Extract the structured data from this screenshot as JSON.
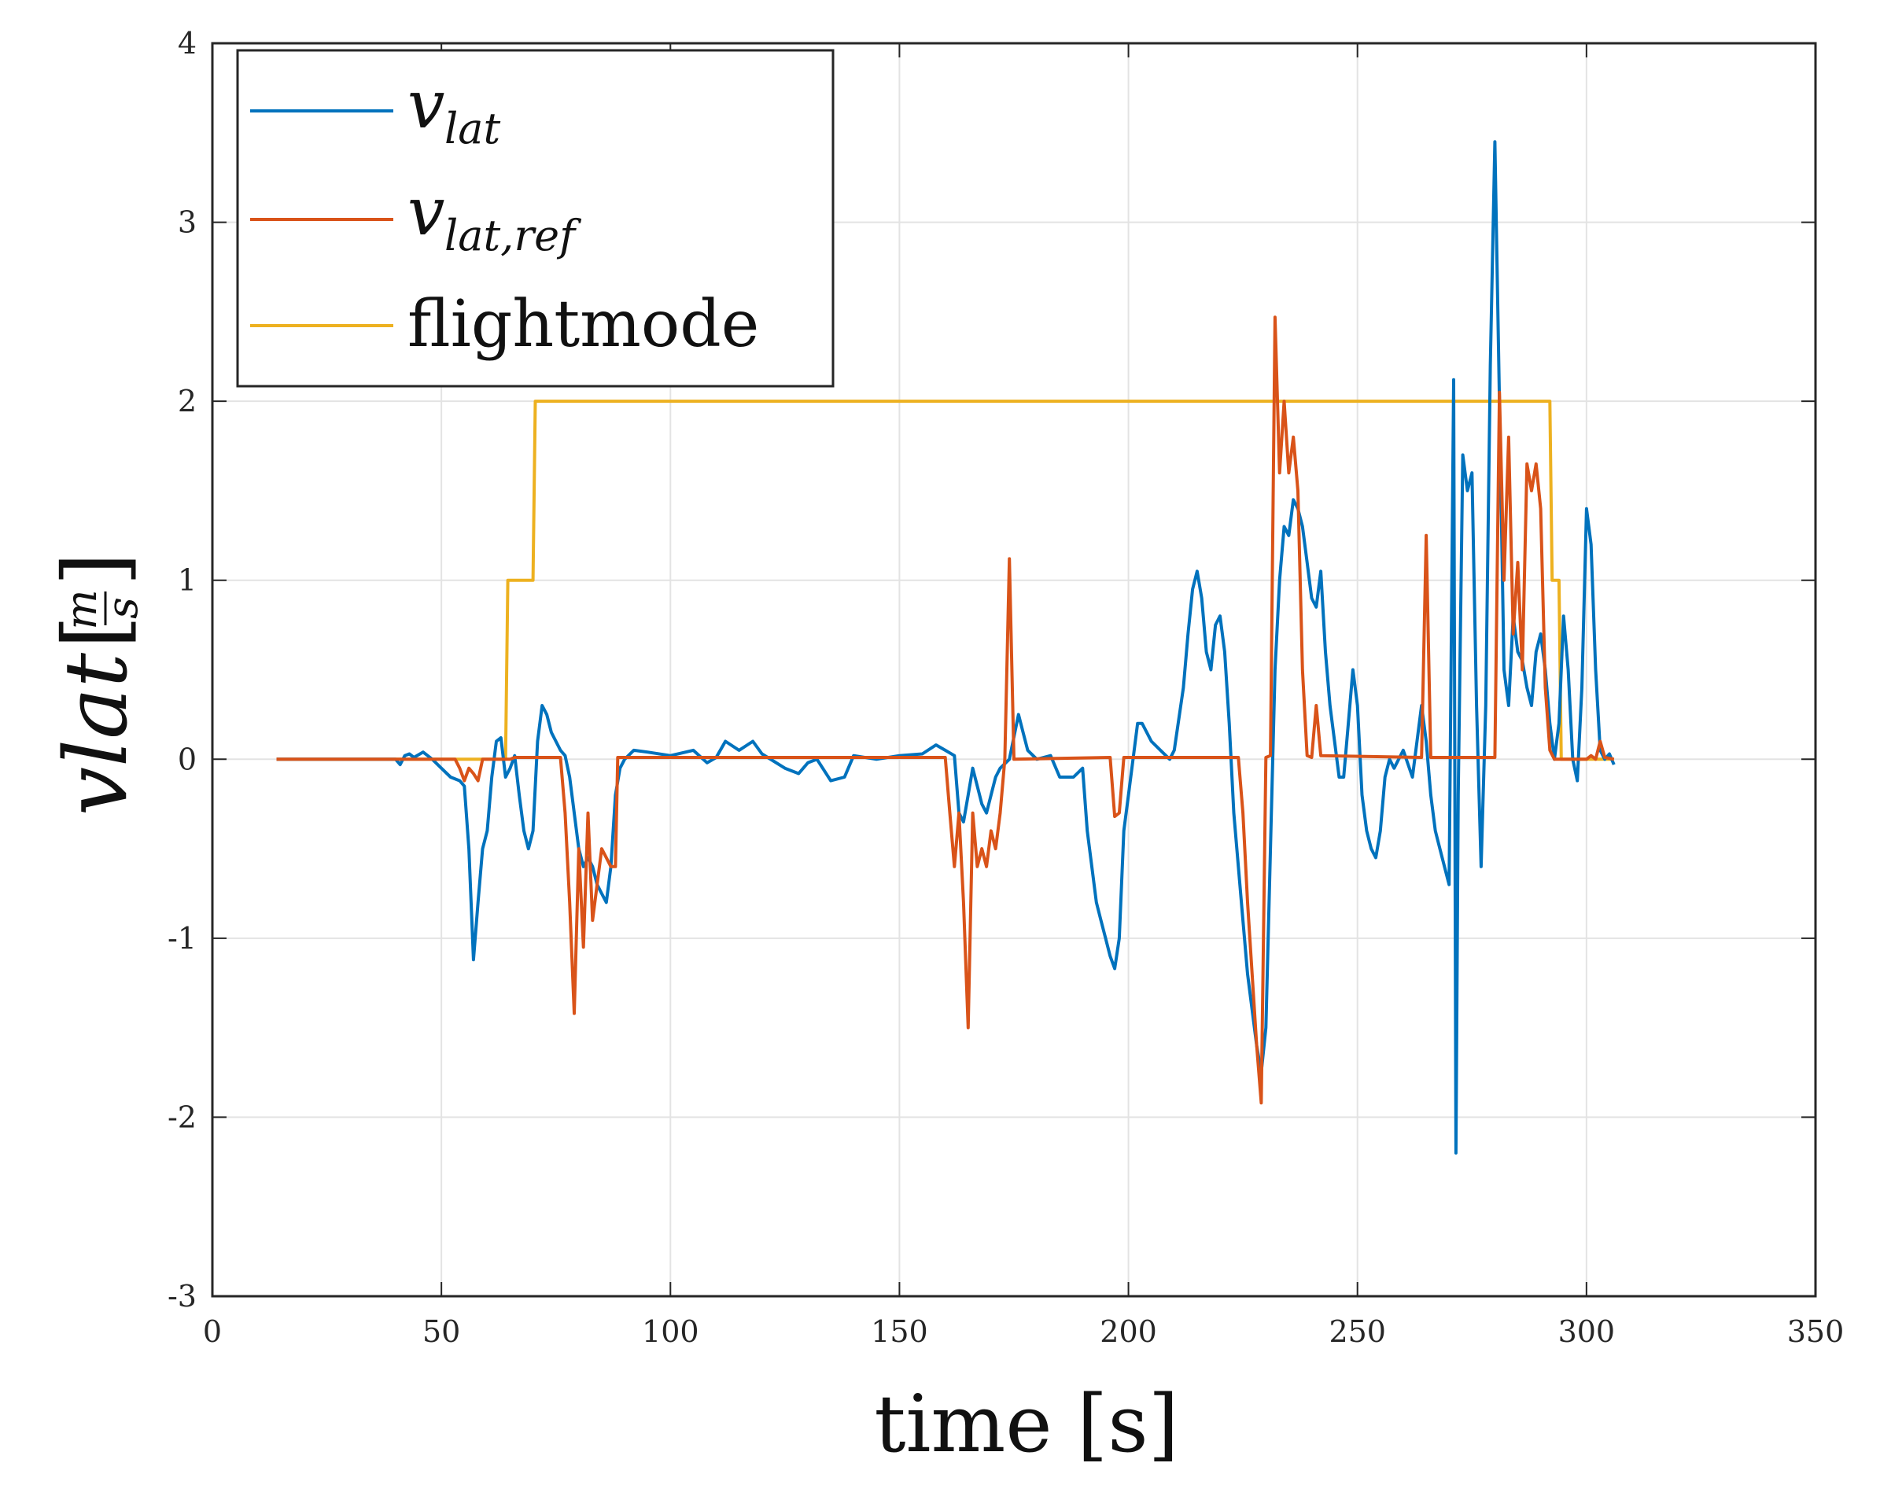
{
  "chart_data": {
    "type": "line",
    "title": "",
    "xlabel": "time [s]",
    "ylabel_main": "vlat",
    "ylabel_unit_num": "m",
    "ylabel_unit_den": "s",
    "xlim": [
      0,
      350
    ],
    "ylim": [
      -3,
      4
    ],
    "xticks": [
      0,
      50,
      100,
      150,
      200,
      250,
      300,
      350
    ],
    "yticks": [
      -3,
      -2,
      -1,
      0,
      1,
      2,
      3,
      4
    ],
    "grid": true,
    "legend_position": "top-left",
    "series": [
      {
        "name": "v_lat",
        "symbol": "v",
        "subscript": "lat",
        "color": "#0072bd",
        "points": [
          [
            14,
            0
          ],
          [
            30,
            0
          ],
          [
            40,
            0
          ],
          [
            41,
            -0.03
          ],
          [
            42,
            0.02
          ],
          [
            43,
            0.03
          ],
          [
            44,
            0.01
          ],
          [
            46,
            0.04
          ],
          [
            48,
            0
          ],
          [
            50,
            -0.05
          ],
          [
            52,
            -0.1
          ],
          [
            54,
            -0.12
          ],
          [
            55,
            -0.15
          ],
          [
            56,
            -0.5
          ],
          [
            57,
            -1.12
          ],
          [
            58,
            -0.8
          ],
          [
            59,
            -0.5
          ],
          [
            60,
            -0.4
          ],
          [
            61,
            -0.1
          ],
          [
            62,
            0.1
          ],
          [
            63,
            0.12
          ],
          [
            64,
            -0.1
          ],
          [
            65,
            -0.05
          ],
          [
            66,
            0.02
          ],
          [
            67,
            -0.2
          ],
          [
            68,
            -0.4
          ],
          [
            69,
            -0.5
          ],
          [
            70,
            -0.4
          ],
          [
            71,
            0.1
          ],
          [
            72,
            0.3
          ],
          [
            73,
            0.25
          ],
          [
            74,
            0.15
          ],
          [
            75,
            0.1
          ],
          [
            76,
            0.05
          ],
          [
            77,
            0.02
          ],
          [
            78,
            -0.1
          ],
          [
            79,
            -0.3
          ],
          [
            80,
            -0.5
          ],
          [
            81,
            -0.6
          ],
          [
            82,
            -0.55
          ],
          [
            83,
            -0.6
          ],
          [
            84,
            -0.7
          ],
          [
            85,
            -0.75
          ],
          [
            86,
            -0.8
          ],
          [
            87,
            -0.6
          ],
          [
            88,
            -0.2
          ],
          [
            89,
            -0.05
          ],
          [
            90,
            0
          ],
          [
            92,
            0.05
          ],
          [
            95,
            0.04
          ],
          [
            100,
            0.02
          ],
          [
            105,
            0.05
          ],
          [
            108,
            -0.02
          ],
          [
            110,
            0.01
          ],
          [
            112,
            0.1
          ],
          [
            115,
            0.05
          ],
          [
            118,
            0.1
          ],
          [
            120,
            0.03
          ],
          [
            125,
            -0.05
          ],
          [
            128,
            -0.08
          ],
          [
            130,
            -0.02
          ],
          [
            132,
            0
          ],
          [
            135,
            -0.12
          ],
          [
            138,
            -0.1
          ],
          [
            140,
            0.02
          ],
          [
            145,
            0
          ],
          [
            150,
            0.02
          ],
          [
            155,
            0.03
          ],
          [
            158,
            0.08
          ],
          [
            160,
            0.05
          ],
          [
            162,
            0.02
          ],
          [
            163,
            -0.3
          ],
          [
            164,
            -0.35
          ],
          [
            165,
            -0.2
          ],
          [
            166,
            -0.05
          ],
          [
            167,
            -0.15
          ],
          [
            168,
            -0.25
          ],
          [
            169,
            -0.3
          ],
          [
            170,
            -0.2
          ],
          [
            171,
            -0.1
          ],
          [
            172,
            -0.05
          ],
          [
            174,
            0
          ],
          [
            176,
            0.25
          ],
          [
            177,
            0.15
          ],
          [
            178,
            0.05
          ],
          [
            180,
            0
          ],
          [
            183,
            0.02
          ],
          [
            185,
            -0.1
          ],
          [
            188,
            -0.1
          ],
          [
            190,
            -0.05
          ],
          [
            191,
            -0.4
          ],
          [
            192,
            -0.6
          ],
          [
            193,
            -0.8
          ],
          [
            194,
            -0.9
          ],
          [
            195,
            -1
          ],
          [
            196,
            -1.1
          ],
          [
            197,
            -1.17
          ],
          [
            198,
            -1
          ],
          [
            199,
            -0.4
          ],
          [
            200,
            -0.2
          ],
          [
            201,
            0
          ],
          [
            202,
            0.2
          ],
          [
            203,
            0.2
          ],
          [
            205,
            0.1
          ],
          [
            207,
            0.05
          ],
          [
            209,
            0
          ],
          [
            210,
            0.05
          ],
          [
            212,
            0.4
          ],
          [
            213,
            0.7
          ],
          [
            214,
            0.95
          ],
          [
            215,
            1.05
          ],
          [
            216,
            0.9
          ],
          [
            217,
            0.6
          ],
          [
            218,
            0.5
          ],
          [
            219,
            0.75
          ],
          [
            220,
            0.8
          ],
          [
            221,
            0.6
          ],
          [
            222,
            0.2
          ],
          [
            223,
            -0.3
          ],
          [
            224,
            -0.6
          ],
          [
            225,
            -0.9
          ],
          [
            226,
            -1.2
          ],
          [
            227,
            -1.4
          ],
          [
            228,
            -1.6
          ],
          [
            229,
            -1.75
          ],
          [
            230,
            -1.5
          ],
          [
            231,
            -0.5
          ],
          [
            232,
            0.5
          ],
          [
            233,
            1
          ],
          [
            234,
            1.3
          ],
          [
            235,
            1.25
          ],
          [
            236,
            1.45
          ],
          [
            237,
            1.4
          ],
          [
            238,
            1.3
          ],
          [
            239,
            1.1
          ],
          [
            240,
            0.9
          ],
          [
            241,
            0.85
          ],
          [
            242,
            1.05
          ],
          [
            243,
            0.6
          ],
          [
            244,
            0.3
          ],
          [
            245,
            0.1
          ],
          [
            246,
            -0.1
          ],
          [
            247,
            -0.1
          ],
          [
            248,
            0.2
          ],
          [
            249,
            0.5
          ],
          [
            250,
            0.3
          ],
          [
            251,
            -0.2
          ],
          [
            252,
            -0.4
          ],
          [
            253,
            -0.5
          ],
          [
            254,
            -0.55
          ],
          [
            255,
            -0.4
          ],
          [
            256,
            -0.1
          ],
          [
            257,
            0
          ],
          [
            258,
            -0.05
          ],
          [
            260,
            0.05
          ],
          [
            262,
            -0.1
          ],
          [
            263,
            0.1
          ],
          [
            264,
            0.3
          ],
          [
            265,
            0.1
          ],
          [
            266,
            -0.2
          ],
          [
            267,
            -0.4
          ],
          [
            268,
            -0.5
          ],
          [
            269,
            -0.6
          ],
          [
            270,
            -0.7
          ],
          [
            271,
            2.12
          ],
          [
            271.5,
            -2.2
          ],
          [
            272,
            -0.2
          ],
          [
            273,
            1.7
          ],
          [
            274,
            1.5
          ],
          [
            275,
            1.6
          ],
          [
            276,
            0.3
          ],
          [
            277,
            -0.6
          ],
          [
            278,
            0.3
          ],
          [
            279,
            2.2
          ],
          [
            280,
            3.45
          ],
          [
            281,
            2
          ],
          [
            282,
            0.5
          ],
          [
            283,
            0.3
          ],
          [
            284,
            0.8
          ],
          [
            285,
            0.6
          ],
          [
            286,
            0.55
          ],
          [
            287,
            0.4
          ],
          [
            288,
            0.3
          ],
          [
            289,
            0.6
          ],
          [
            290,
            0.7
          ],
          [
            291,
            0.5
          ],
          [
            292,
            0.2
          ],
          [
            293,
            0
          ],
          [
            294,
            0.2
          ],
          [
            295,
            0.8
          ],
          [
            296,
            0.5
          ],
          [
            297,
            0
          ],
          [
            298,
            -0.12
          ],
          [
            299,
            0.4
          ],
          [
            300,
            1.4
          ],
          [
            301,
            1.2
          ],
          [
            302,
            0.5
          ],
          [
            303,
            0.05
          ],
          [
            304,
            0
          ],
          [
            305,
            0.03
          ],
          [
            306,
            -0.03
          ]
        ]
      },
      {
        "name": "v_lat,ref",
        "symbol": "v",
        "subscript": "lat,ref",
        "color": "#d95319",
        "points": [
          [
            14,
            0
          ],
          [
            53,
            0
          ],
          [
            54,
            -0.05
          ],
          [
            55,
            -0.12
          ],
          [
            56,
            -0.05
          ],
          [
            57,
            -0.08
          ],
          [
            58,
            -0.12
          ],
          [
            59,
            0
          ],
          [
            65,
            0
          ],
          [
            66,
            0.01
          ],
          [
            76,
            0.01
          ],
          [
            77,
            -0.3
          ],
          [
            78,
            -0.8
          ],
          [
            79,
            -1.42
          ],
          [
            80,
            -0.5
          ],
          [
            81,
            -1.05
          ],
          [
            82,
            -0.3
          ],
          [
            83,
            -0.9
          ],
          [
            84,
            -0.7
          ],
          [
            85,
            -0.5
          ],
          [
            86,
            -0.55
          ],
          [
            87,
            -0.6
          ],
          [
            88,
            -0.6
          ],
          [
            88.5,
            0.01
          ],
          [
            160,
            0.01
          ],
          [
            161,
            -0.3
          ],
          [
            162,
            -0.6
          ],
          [
            163,
            -0.3
          ],
          [
            164,
            -0.8
          ],
          [
            165,
            -1.5
          ],
          [
            166,
            -0.3
          ],
          [
            167,
            -0.6
          ],
          [
            168,
            -0.5
          ],
          [
            169,
            -0.6
          ],
          [
            170,
            -0.4
          ],
          [
            171,
            -0.5
          ],
          [
            172,
            -0.3
          ],
          [
            173,
            0
          ],
          [
            174,
            1.12
          ],
          [
            175,
            0
          ],
          [
            196,
            0.01
          ],
          [
            197,
            -0.32
          ],
          [
            198,
            -0.3
          ],
          [
            199,
            0.01
          ],
          [
            224,
            0.01
          ],
          [
            225,
            -0.3
          ],
          [
            226,
            -0.8
          ],
          [
            227,
            -1.2
          ],
          [
            228,
            -1.6
          ],
          [
            229,
            -1.92
          ],
          [
            230,
            0.01
          ],
          [
            231,
            0.02
          ],
          [
            232,
            2.47
          ],
          [
            233,
            1.6
          ],
          [
            234,
            2
          ],
          [
            235,
            1.6
          ],
          [
            236,
            1.8
          ],
          [
            237,
            1.5
          ],
          [
            238,
            0.5
          ],
          [
            239,
            0.02
          ],
          [
            240,
            0.01
          ],
          [
            241,
            0.3
          ],
          [
            242,
            0.02
          ],
          [
            264,
            0.01
          ],
          [
            265,
            1.25
          ],
          [
            266,
            0.01
          ],
          [
            280,
            0.01
          ],
          [
            281,
            2.05
          ],
          [
            282,
            1
          ],
          [
            283,
            1.8
          ],
          [
            284,
            0.7
          ],
          [
            285,
            1.1
          ],
          [
            286,
            0.5
          ],
          [
            287,
            1.65
          ],
          [
            288,
            1.5
          ],
          [
            289,
            1.65
          ],
          [
            290,
            1.4
          ],
          [
            291,
            0.4
          ],
          [
            292,
            0.05
          ],
          [
            293,
            0
          ],
          [
            300,
            0
          ],
          [
            301,
            0.02
          ],
          [
            302,
            0
          ],
          [
            303,
            0.1
          ],
          [
            304,
            0.01
          ],
          [
            306,
            0
          ]
        ]
      },
      {
        "name": "flightmode",
        "color": "#edb120",
        "points": [
          [
            14,
            0
          ],
          [
            64,
            0
          ],
          [
            64.5,
            1
          ],
          [
            70,
            1
          ],
          [
            70.5,
            2
          ],
          [
            292,
            2
          ],
          [
            292.5,
            1
          ],
          [
            294,
            1
          ],
          [
            294.5,
            0
          ],
          [
            306,
            0
          ]
        ]
      }
    ]
  }
}
